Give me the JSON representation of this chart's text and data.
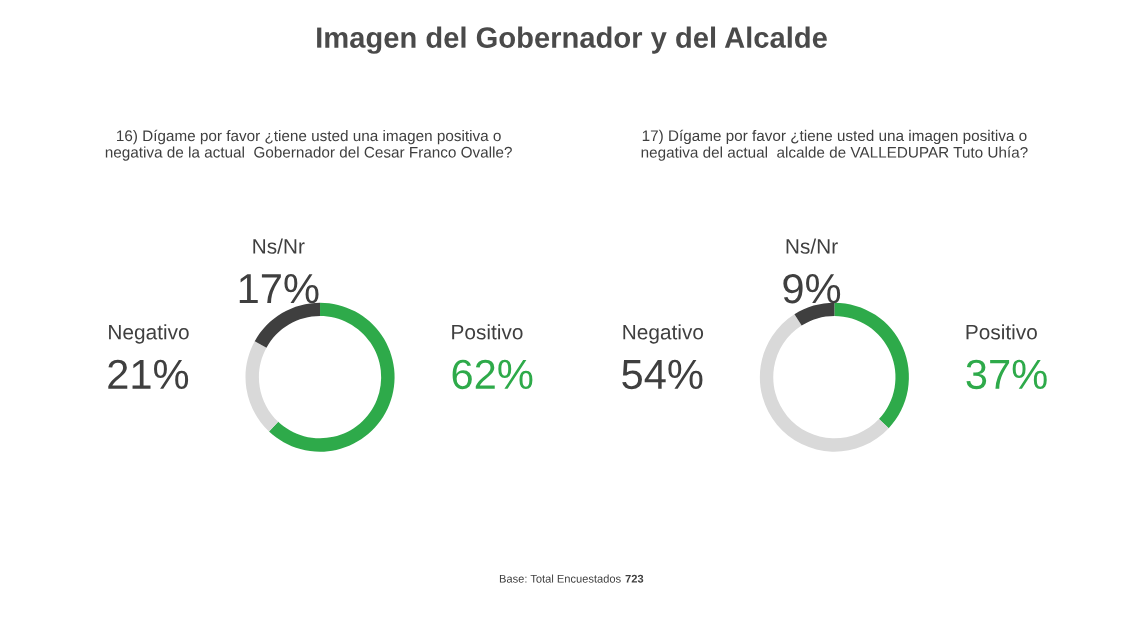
{
  "chart_data": [
    {
      "type": "donut",
      "title": "Imagen del Gobernador y del Alcalde",
      "subtitle": "16) Dígame por favor ¿tiene usted una imagen positiva o\nnegativa de la actual  Gobernador del Cesar Franco Ovalle?",
      "categories": [
        "Positivo",
        "Negativo",
        "Ns/Nr"
      ],
      "values": [
        62,
        21,
        17
      ],
      "value_labels": [
        "62%",
        "21%",
        "17%"
      ],
      "colors": [
        "#2eaa4a",
        "#d9d9d9",
        "#3f3f3f"
      ]
    },
    {
      "type": "donut",
      "subtitle": "17) Dígame por favor ¿tiene usted una imagen positiva o\nnegativa del actual  alcalde de VALLEDUPAR Tuto Uhía?",
      "categories": [
        "Positivo",
        "Negativo",
        "Ns/Nr"
      ],
      "values": [
        37,
        54,
        9
      ],
      "value_labels": [
        "37%",
        "54%",
        "9%"
      ],
      "colors": [
        "#2eaa4a",
        "#d9d9d9",
        "#3f3f3f"
      ],
      "annotations": [
        "Base: Total Encuestados",
        "723"
      ]
    }
  ]
}
